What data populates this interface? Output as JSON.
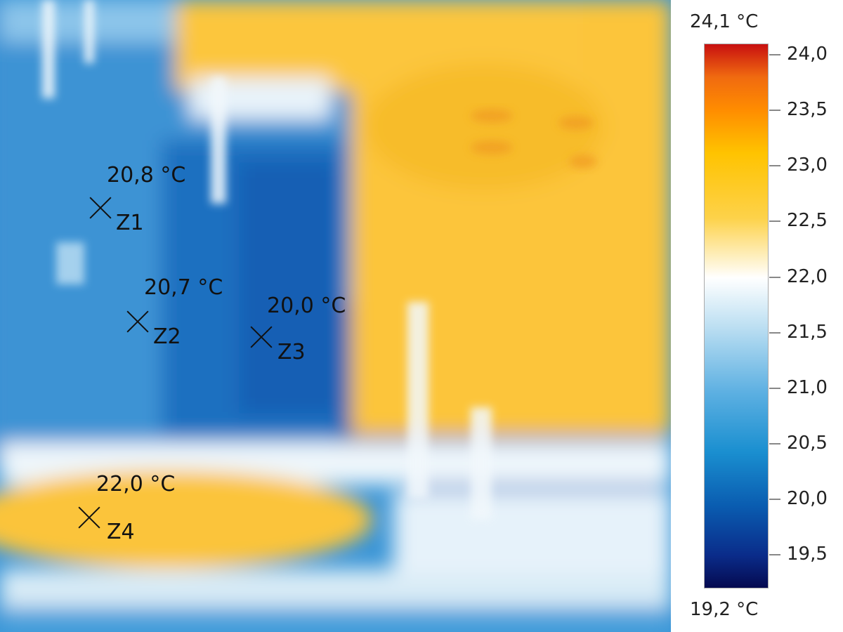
{
  "scale": {
    "max_label": "24,1 °C",
    "min_label": "19,2 °C",
    "min": 19.2,
    "max": 24.1,
    "ticks": [
      "24,0",
      "23,5",
      "23,0",
      "22,5",
      "22,0",
      "21,5",
      "21,0",
      "20,5",
      "20,0",
      "19,5"
    ],
    "tick_values": [
      24.0,
      23.5,
      23.0,
      22.5,
      22.0,
      21.5,
      21.0,
      20.5,
      20.0,
      19.5
    ],
    "palette": [
      "#c81010",
      "#f06a10",
      "#ff8c00",
      "#ffc300",
      "#fdd24a",
      "#ffffff",
      "#bcdff2",
      "#5db0e2",
      "#1a8fd0",
      "#0a5cb0",
      "#0a2c8a",
      "#050a50"
    ]
  },
  "markers": [
    {
      "id": "Z1",
      "temp": "20,8 °C"
    },
    {
      "id": "Z2",
      "temp": "20,7 °C"
    },
    {
      "id": "Z3",
      "temp": "20,0 °C"
    },
    {
      "id": "Z4",
      "temp": "22,0 °C"
    }
  ]
}
